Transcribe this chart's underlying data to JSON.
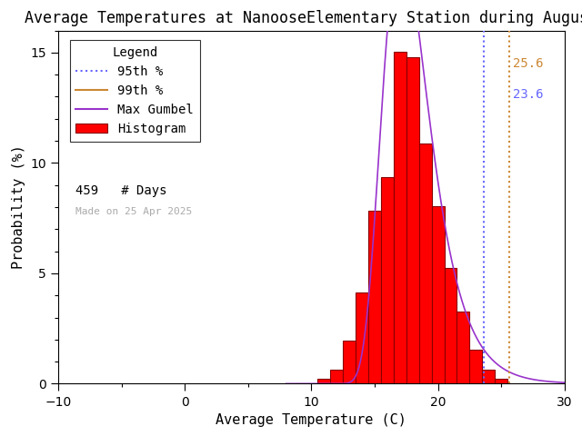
{
  "title": "Average Temperatures at NanooseElementary Station during August",
  "xlabel": "Average Temperature (C)",
  "ylabel": "Probability (%)",
  "xlim": [
    -10,
    30
  ],
  "ylim": [
    0,
    16
  ],
  "n_days": 459,
  "made_on": "Made on 25 Apr 2025",
  "p95_val": 23.6,
  "p99_val": 25.6,
  "p95_color": "#6666ff",
  "p99_color": "#cc8833",
  "gumbel_color": "#9933cc",
  "hist_facecolor": "#ff0000",
  "hist_edgecolor": "#880000",
  "background": "#ffffff",
  "bin_centers": [
    11,
    12,
    13,
    14,
    15,
    16,
    17,
    18,
    19,
    20,
    21,
    22,
    23,
    24,
    25
  ],
  "hist_probs": [
    0.22,
    0.65,
    1.96,
    4.14,
    7.84,
    9.37,
    15.03,
    14.81,
    10.89,
    8.06,
    5.23,
    3.27,
    1.52,
    0.65,
    0.22
  ],
  "gumbel_mu": 17.1,
  "gumbel_beta": 1.85,
  "title_fontsize": 12,
  "axis_fontsize": 11,
  "tick_fontsize": 10,
  "legend_fontsize": 10,
  "annot_fontsize": 10
}
